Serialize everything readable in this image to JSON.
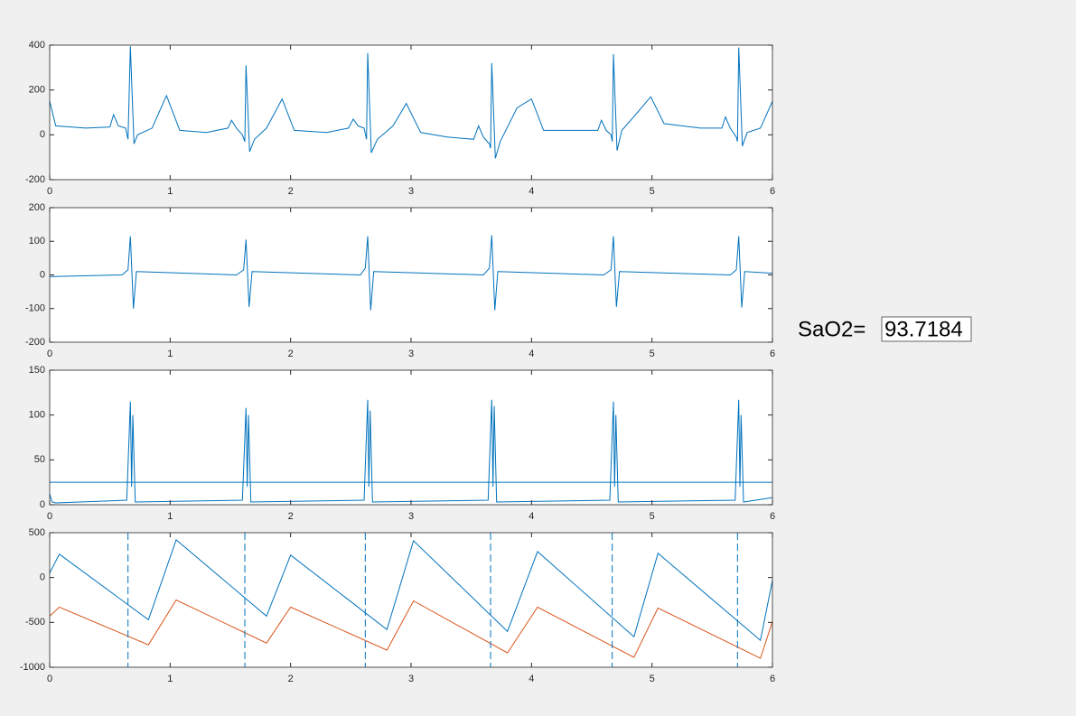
{
  "chart_data": [
    {
      "type": "line",
      "x": [
        0,
        0.05,
        0.3,
        0.5,
        0.53,
        0.57,
        0.63,
        0.65,
        0.67,
        0.7,
        0.73,
        0.85,
        0.97,
        1.08,
        1.3,
        1.48,
        1.51,
        1.55,
        1.6,
        1.62,
        1.63,
        1.66,
        1.7,
        1.8,
        1.93,
        2.03,
        2.3,
        2.48,
        2.52,
        2.56,
        2.61,
        2.63,
        2.64,
        2.67,
        2.72,
        2.85,
        2.96,
        3.08,
        3.3,
        3.52,
        3.56,
        3.6,
        3.65,
        3.66,
        3.67,
        3.7,
        3.74,
        3.88,
        4.0,
        4.1,
        4.4,
        4.55,
        4.58,
        4.62,
        4.66,
        4.67,
        4.68,
        4.71,
        4.75,
        4.88,
        4.99,
        5.1,
        5.4,
        5.58,
        5.61,
        5.65,
        5.7,
        5.71,
        5.72,
        5.75,
        5.79,
        5.9,
        6.0
      ],
      "series": [
        {
          "color": "#0072bd",
          "values": [
            150,
            40,
            30,
            35,
            90,
            40,
            30,
            -20,
            395,
            -40,
            0,
            30,
            175,
            20,
            10,
            30,
            65,
            30,
            0,
            -30,
            310,
            -75,
            -20,
            30,
            160,
            20,
            10,
            30,
            70,
            40,
            30,
            -20,
            365,
            -80,
            -20,
            40,
            140,
            10,
            -10,
            -20,
            40,
            -10,
            -40,
            -60,
            320,
            -105,
            -30,
            120,
            160,
            20,
            20,
            20,
            65,
            20,
            0,
            -30,
            360,
            -70,
            20,
            100,
            170,
            50,
            30,
            30,
            80,
            30,
            -10,
            -30,
            390,
            -50,
            10,
            30,
            150
          ]
        }
      ],
      "xlim": [
        0,
        6
      ],
      "xticks": [
        0,
        1,
        2,
        3,
        4,
        5,
        6
      ],
      "ylim": [
        -200,
        400
      ],
      "yticks": [
        -200,
        0,
        200,
        400
      ]
    },
    {
      "type": "line",
      "x": [
        0,
        0.6,
        0.65,
        0.67,
        0.695,
        0.72,
        1.55,
        1.61,
        1.63,
        1.655,
        1.68,
        2.58,
        2.62,
        2.64,
        2.665,
        2.69,
        3.6,
        3.65,
        3.67,
        3.695,
        3.72,
        4.6,
        4.66,
        4.68,
        4.705,
        4.73,
        5.65,
        5.7,
        5.72,
        5.745,
        5.77,
        6
      ],
      "series": [
        {
          "color": "#0072bd",
          "values": [
            -5,
            0,
            15,
            115,
            -100,
            10,
            0,
            15,
            105,
            -95,
            10,
            0,
            20,
            115,
            -105,
            10,
            0,
            20,
            118,
            -105,
            10,
            0,
            15,
            115,
            -95,
            10,
            0,
            15,
            115,
            -97,
            10,
            5
          ]
        }
      ],
      "xlim": [
        0,
        6
      ],
      "xticks": [
        0,
        1,
        2,
        3,
        4,
        5,
        6
      ],
      "ylim": [
        -200,
        200
      ],
      "yticks": [
        -200,
        -100,
        0,
        100,
        200
      ]
    },
    {
      "type": "line",
      "x": [
        0,
        0.02,
        0.05,
        0.64,
        0.67,
        0.68,
        0.69,
        0.71,
        1.6,
        1.63,
        1.64,
        1.65,
        1.67,
        2.61,
        2.64,
        2.65,
        2.66,
        2.68,
        3.64,
        3.67,
        3.68,
        3.69,
        3.71,
        4.65,
        4.68,
        4.69,
        4.7,
        4.72,
        5.69,
        5.72,
        5.73,
        5.74,
        5.76,
        6
      ],
      "series": [
        {
          "color": "#0072bd",
          "values": [
            12,
            3,
            2,
            5,
            115,
            20,
            100,
            3,
            5,
            108,
            20,
            100,
            3,
            5,
            117,
            20,
            105,
            3,
            5,
            117,
            20,
            110,
            3,
            5,
            115,
            20,
            100,
            3,
            5,
            117,
            20,
            100,
            3,
            8
          ]
        }
      ],
      "hline": 25,
      "xlim": [
        0,
        6
      ],
      "xticks": [
        0,
        1,
        2,
        3,
        4,
        5,
        6
      ],
      "ylim": [
        0,
        150
      ],
      "yticks": [
        0,
        50,
        100,
        150
      ]
    },
    {
      "type": "line",
      "x": [
        0,
        0.08,
        0.82,
        1.05,
        1.8,
        2.0,
        2.8,
        3.02,
        3.8,
        4.05,
        4.85,
        5.05,
        5.9,
        6
      ],
      "series": [
        {
          "color": "#0072bd",
          "values": [
            50,
            260,
            -470,
            420,
            -430,
            250,
            -580,
            410,
            -600,
            290,
            -660,
            270,
            -700,
            -30
          ]
        },
        {
          "color": "#d95319",
          "values": [
            -430,
            -330,
            -750,
            -250,
            -730,
            -330,
            -810,
            -260,
            -840,
            -330,
            -890,
            -340,
            -900,
            -490
          ]
        }
      ],
      "vlines": [
        0.65,
        1.62,
        2.62,
        3.66,
        4.67,
        5.71
      ],
      "xlim": [
        0,
        6
      ],
      "xticks": [
        0,
        1,
        2,
        3,
        4,
        5,
        6
      ],
      "ylim": [
        -1000,
        500
      ],
      "yticks": [
        -1000,
        -500,
        0,
        500
      ]
    }
  ],
  "annotation": {
    "label": "SaO2=",
    "value": 93.7184
  }
}
